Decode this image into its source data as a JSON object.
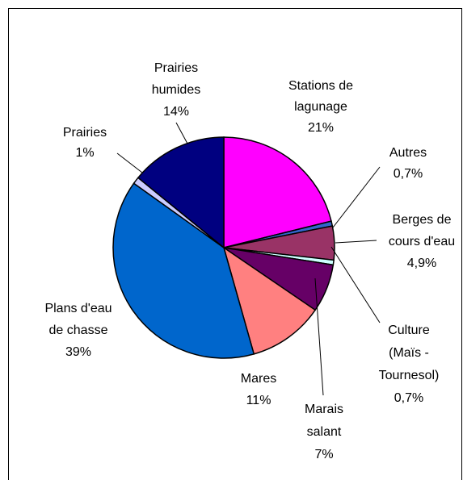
{
  "chart_data": {
    "type": "pie",
    "labels": [
      [
        "Stations de",
        "lagunage"
      ],
      [
        "Autres"
      ],
      [
        "Berges de",
        "cours d'eau"
      ],
      [
        "Culture",
        "(Maïs -",
        "Tournesol)"
      ],
      [
        "Marais",
        "salant"
      ],
      [
        "Mares"
      ],
      [
        "Plans d'eau",
        "de chasse"
      ],
      [
        "Prairies"
      ],
      [
        "Prairies",
        "humides"
      ]
    ],
    "values": [
      21,
      0.7,
      4.9,
      0.7,
      7,
      11,
      39,
      1,
      14
    ],
    "value_labels": [
      "21%",
      "0,7%",
      "4,9%",
      "0,7%",
      "7%",
      "11%",
      "39%",
      "1%",
      "14%"
    ],
    "colors": [
      "#ff00ff",
      "#3366cc",
      "#993366",
      "#ccffff",
      "#660066",
      "#ff8080",
      "#0066cc",
      "#ccccff",
      "#000080"
    ]
  }
}
